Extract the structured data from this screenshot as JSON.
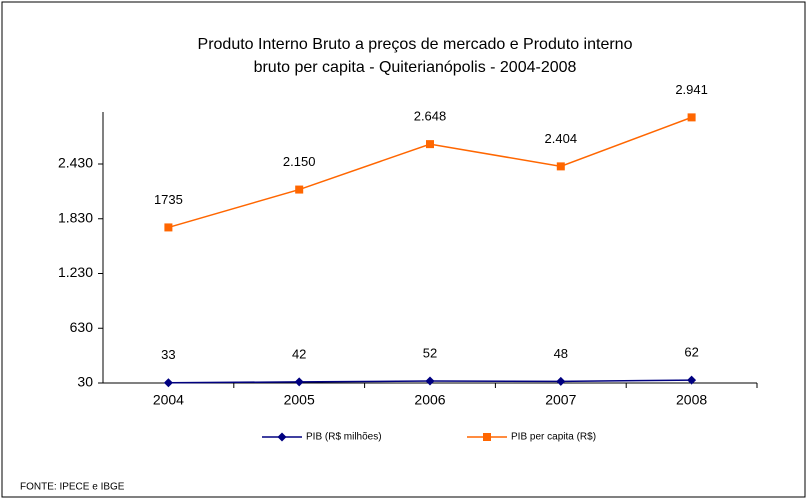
{
  "chart_data": {
    "type": "line",
    "title": [
      "Produto Interno Bruto a preços de mercado e  Produto interno",
      "bruto per capita - Quiterianópolis - 2004-2008"
    ],
    "categories": [
      "2004",
      "2005",
      "2006",
      "2007",
      "2008"
    ],
    "series": [
      {
        "name": "PIB (R$ milhões)",
        "color": "#000080",
        "marker": "diamond",
        "values": [
          33,
          42,
          52,
          48,
          62
        ]
      },
      {
        "name": "PIB per capita (R$)",
        "color": "#ff6600",
        "marker": "square",
        "values": [
          1735,
          2150,
          2648,
          2404,
          2941
        ],
        "value_labels": [
          "1735",
          "2.150",
          "2.648",
          "2.404",
          "2.941"
        ]
      }
    ],
    "ylim": [
      30,
      3000
    ],
    "yticks": [
      30,
      630,
      {
        "value": 1230,
        "label": "1.230"
      },
      {
        "value": 1830,
        "label": "1.830"
      },
      {
        "value": 2430,
        "label": "2.430"
      }
    ],
    "legend": "bottom",
    "source": "FONTE: IPECE e IBGE"
  }
}
